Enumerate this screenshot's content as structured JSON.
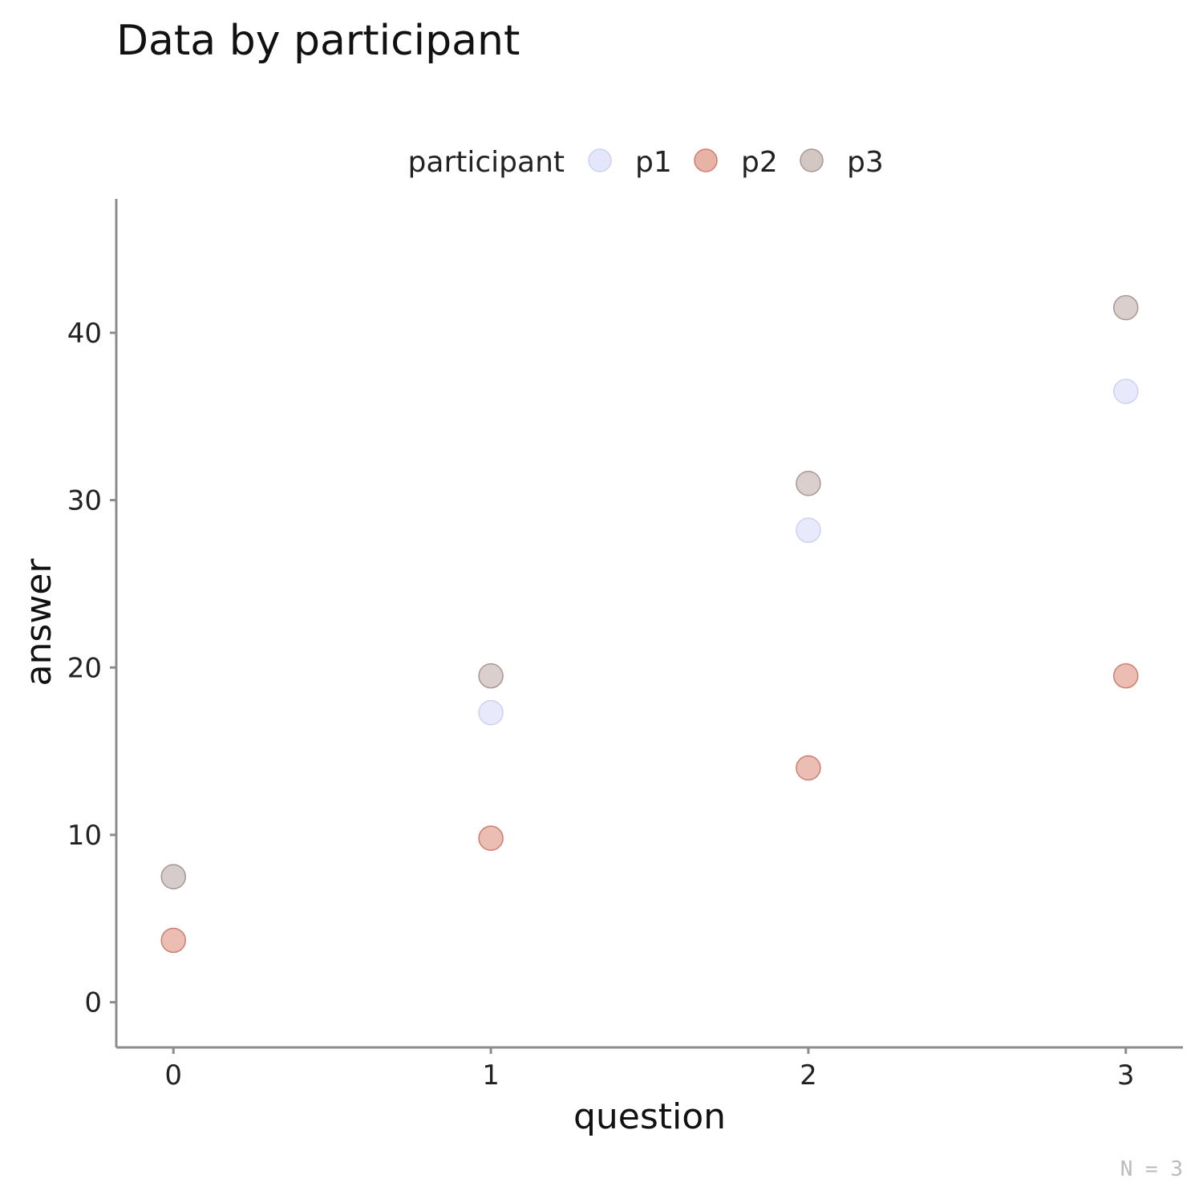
{
  "chart_data": {
    "type": "scatter",
    "title": "Data by participant",
    "xlabel": "question",
    "ylabel": "answer",
    "caption": "N = 3",
    "legend_title": "participant",
    "legend_position": "top",
    "grid": false,
    "xlim": [
      -0.18,
      3.18
    ],
    "ylim": [
      -2.7,
      48.0
    ],
    "x_ticks": [
      0,
      1,
      2,
      3
    ],
    "y_ticks": [
      0,
      10,
      20,
      30,
      40
    ],
    "x": [
      0,
      1,
      2,
      3
    ],
    "series": [
      {
        "name": "p1",
        "color": "#e4e6fa",
        "stroke": "#cdd1f2",
        "values": [
          7.5,
          17.3,
          28.2,
          36.5
        ]
      },
      {
        "name": "p2",
        "color": "#e8b2a6",
        "stroke": "#cc7f70",
        "values": [
          3.7,
          9.8,
          14.0,
          19.5
        ]
      },
      {
        "name": "p3",
        "color": "#d3c7c3",
        "stroke": "#a89893",
        "values": [
          7.5,
          19.5,
          31.0,
          41.5
        ]
      }
    ]
  }
}
